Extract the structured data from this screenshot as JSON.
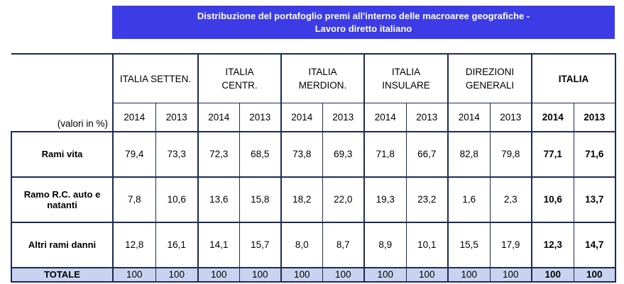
{
  "title": {
    "lines": [
      "Distribuzione del portafoglio premi all'interno delle macroaree geografiche -",
      "Lavoro diretto italiano"
    ]
  },
  "table": {
    "unit_note": "(valori in %)",
    "regions": [
      {
        "lines": [
          "ITALIA SETTEN."
        ],
        "bold": false
      },
      {
        "lines": [
          "ITALIA",
          "CENTR."
        ],
        "bold": false
      },
      {
        "lines": [
          "ITALIA",
          "MERDION."
        ],
        "bold": false
      },
      {
        "lines": [
          "ITALIA",
          "INSULARE"
        ],
        "bold": false
      },
      {
        "lines": [
          "DIREZIONI",
          "GENERALI"
        ],
        "bold": false
      },
      {
        "lines": [
          "ITALIA"
        ],
        "bold": true
      }
    ],
    "years": [
      "2014",
      "2013"
    ],
    "rows": [
      {
        "label": "Rami vita",
        "values": [
          "79,4",
          "73,3",
          "72,3",
          "68,5",
          "73,8",
          "69,3",
          "71,8",
          "66,7",
          "82,8",
          "79,8",
          "77,1",
          "71,6"
        ]
      },
      {
        "label": "Ramo R.C. auto e natanti",
        "values": [
          "7,8",
          "10,6",
          "13,6",
          "15,8",
          "18,2",
          "22,0",
          "19,3",
          "23,2",
          "1,6",
          "2,3",
          "10,6",
          "13,7"
        ]
      },
      {
        "label": "Altri rami danni",
        "values": [
          "12,8",
          "16,1",
          "14,1",
          "15,7",
          "8,0",
          "8,7",
          "8,9",
          "10,1",
          "15,5",
          "17,9",
          "12,3",
          "14,7"
        ]
      },
      {
        "label": "TOTALE",
        "values": [
          "100",
          "100",
          "100",
          "100",
          "100",
          "100",
          "100",
          "100",
          "100",
          "100",
          "100",
          "100"
        ]
      }
    ]
  }
}
